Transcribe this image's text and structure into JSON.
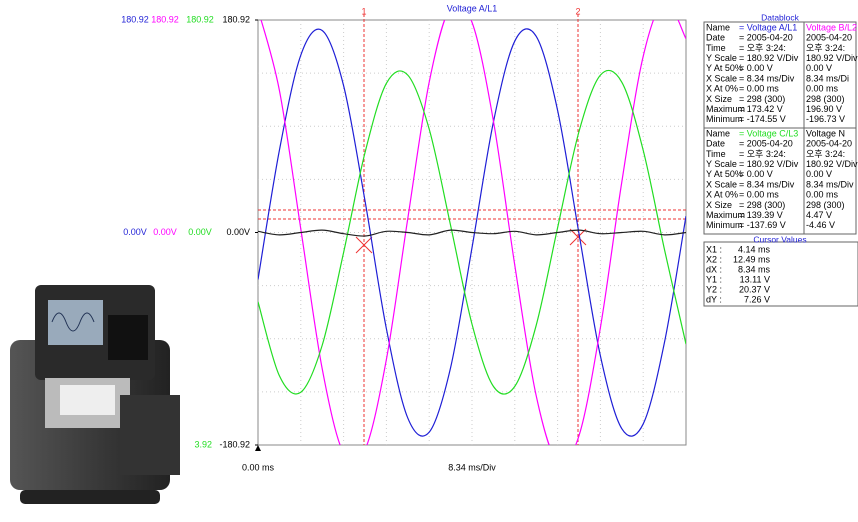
{
  "chart_data": {
    "type": "line",
    "title": "Voltage A/L1",
    "x": [
      0,
      4.17,
      8.34,
      12.51,
      16.68,
      20.85,
      25.02,
      29.19,
      33.36,
      37.53,
      41.7,
      45.87,
      50.04,
      54.21,
      58.38,
      62.55,
      66.72,
      70.89,
      75.06,
      79.23,
      83.4
    ],
    "series": [
      {
        "color": "#1f1fd6",
        "values": [
          -40,
          70,
          151,
          172,
          125,
          27,
          -82,
          -158,
          -170,
          -115,
          -13,
          94,
          163,
          167,
          104,
          -1,
          -105,
          -167,
          -163,
          -93,
          14
        ]
      },
      {
        "color": "#ff00ff",
        "values": [
          190,
          121,
          3,
          -116,
          -188,
          -185,
          -108,
          12,
          128,
          192,
          179,
          95,
          -28,
          -139,
          -195,
          -173,
          -81,
          43,
          150,
          197,
          165
        ]
      },
      {
        "color": "#22dd22",
        "values": [
          -59,
          -122,
          -136,
          -96,
          -17,
          68,
          127,
          134,
          88,
          6,
          -78,
          -131,
          -131,
          -79,
          4,
          86,
          134,
          128,
          70,
          -15,
          -95
        ]
      },
      {
        "color": "#222222",
        "values": [
          1,
          -2,
          0,
          2,
          -1,
          -3,
          1,
          0,
          -2,
          2,
          0,
          -1,
          1,
          -2,
          0,
          2,
          -1,
          0,
          1,
          -2,
          0
        ]
      }
    ],
    "xlim": [
      0,
      83.4
    ],
    "ylim": [
      -180.92,
      180.92
    ],
    "yticks": [
      {
        "value": 180.92,
        "label": "180.92"
      },
      {
        "value": 0,
        "label": "0.00V"
      },
      {
        "value": -180.92,
        "label": "-180.92"
      }
    ],
    "x_start_label": "0.00 ms",
    "x_scale_label": "8.34 ms/Div"
  },
  "channel_scales": {
    "top": [
      "180.92",
      "180.92",
      "180.92"
    ],
    "middle": [
      "0.00V",
      "0.00V",
      "0.00V"
    ],
    "bottom": "3.92"
  },
  "cursor_markers": [
    "1",
    "2"
  ],
  "datablock": {
    "title": "Datablock",
    "blocks": [
      {
        "rows": [
          [
            "Name",
            "= Voltage A/L1",
            "Voltage B/L2"
          ],
          [
            "Date",
            "= 2005-04-20",
            "2005-04-20"
          ],
          [
            "Time",
            "= 오후 3:24:",
            "오후 3:24:"
          ],
          [
            "Y Scale",
            "= 180.92 V/Div",
            "180.92 V/Div"
          ],
          [
            "Y At 50%",
            "=    0.00 V",
            "0.00 V"
          ],
          [
            "X Scale",
            "=    8.34 ms/Div",
            "8.34 ms/Di"
          ],
          [
            "X At 0%",
            "=    0.00 ms",
            "0.00 ms"
          ],
          [
            "X Size",
            "= 298 (300)",
            "298 (300)"
          ],
          [
            "Maximum",
            "= 173.42 V",
            "196.90 V"
          ],
          [
            "Minimum",
            "= -174.55 V",
            "-196.73 V"
          ]
        ]
      },
      {
        "rows": [
          [
            "Name",
            "= Voltage C/L3",
            "Voltage N"
          ],
          [
            "Date",
            "= 2005-04-20",
            "2005-04-20"
          ],
          [
            "Time",
            "= 오후 3:24:",
            "오후 3:24:"
          ],
          [
            "Y Scale",
            "= 180.92 V/Div",
            "180.92 V/Div"
          ],
          [
            "Y At 50%",
            "=    0.00 V",
            "0.00 V"
          ],
          [
            "X Scale",
            "=    8.34 ms/Div",
            "8.34 ms/Div"
          ],
          [
            "X At 0%",
            "=    0.00 ms",
            "0.00 ms"
          ],
          [
            "X Size",
            "= 298 (300)",
            "298 (300)"
          ],
          [
            "Maximum",
            "= 139.39 V",
            "4.47 V"
          ],
          [
            "Minimum",
            "= -137.69 V",
            "-4.46 V"
          ]
        ]
      }
    ]
  },
  "cursor_values": {
    "title": "Cursor Values",
    "rows": [
      [
        "X1 :",
        "4.14 ms"
      ],
      [
        "X2 :",
        "12.49 ms"
      ],
      [
        "dX :",
        "8.34 ms"
      ],
      [
        "Y1 :",
        "13.11 V"
      ],
      [
        "Y2 :",
        "20.37 V"
      ],
      [
        "dY :",
        "7.26 V"
      ]
    ]
  }
}
